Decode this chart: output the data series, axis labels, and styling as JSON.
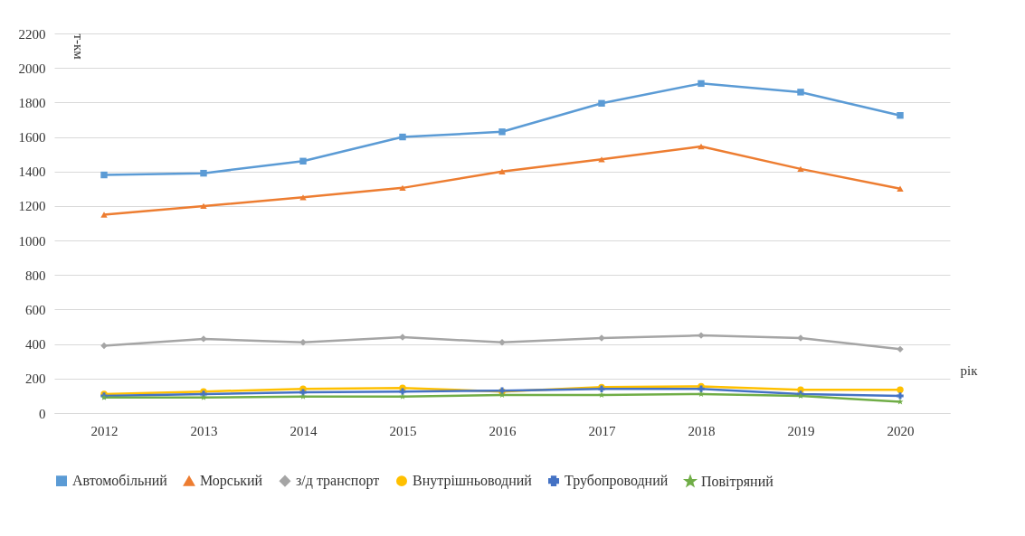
{
  "chart_data": {
    "type": "line",
    "xlabel": "рік",
    "ylabel": "т-км",
    "categories": [
      "2012",
      "2013",
      "2014",
      "2015",
      "2016",
      "2017",
      "2018",
      "2019",
      "2020"
    ],
    "series": [
      {
        "name": "Автомобільний",
        "color": "#5b9bd5",
        "marker": "square",
        "values": [
          1380,
          1390,
          1460,
          1600,
          1630,
          1795,
          1910,
          1860,
          1725
        ]
      },
      {
        "name": "Морський",
        "color": "#ed7d31",
        "marker": "triangle",
        "values": [
          1150,
          1200,
          1250,
          1305,
          1400,
          1470,
          1545,
          1415,
          1300
        ]
      },
      {
        "name": "з/д транспорт",
        "color": "#a5a5a5",
        "marker": "diamond",
        "values": [
          390,
          430,
          410,
          440,
          410,
          435,
          450,
          435,
          370
        ]
      },
      {
        "name": "Внутрішньоводний",
        "color": "#ffc000",
        "marker": "circle",
        "values": [
          110,
          125,
          140,
          145,
          125,
          150,
          155,
          135,
          135
        ]
      },
      {
        "name": "Трубопроводний",
        "color": "#4472c4",
        "marker": "cross",
        "values": [
          100,
          110,
          120,
          125,
          130,
          140,
          140,
          110,
          100
        ]
      },
      {
        "name": "Повітряний",
        "color": "#70ad47",
        "marker": "star",
        "values": [
          90,
          90,
          95,
          95,
          105,
          105,
          110,
          100,
          65
        ]
      }
    ],
    "ylim": [
      0,
      2200
    ],
    "yticks": [
      0,
      200,
      400,
      600,
      800,
      1000,
      1200,
      1400,
      1600,
      1800,
      2000,
      2200
    ],
    "grid": "y",
    "legend": "bottom"
  }
}
